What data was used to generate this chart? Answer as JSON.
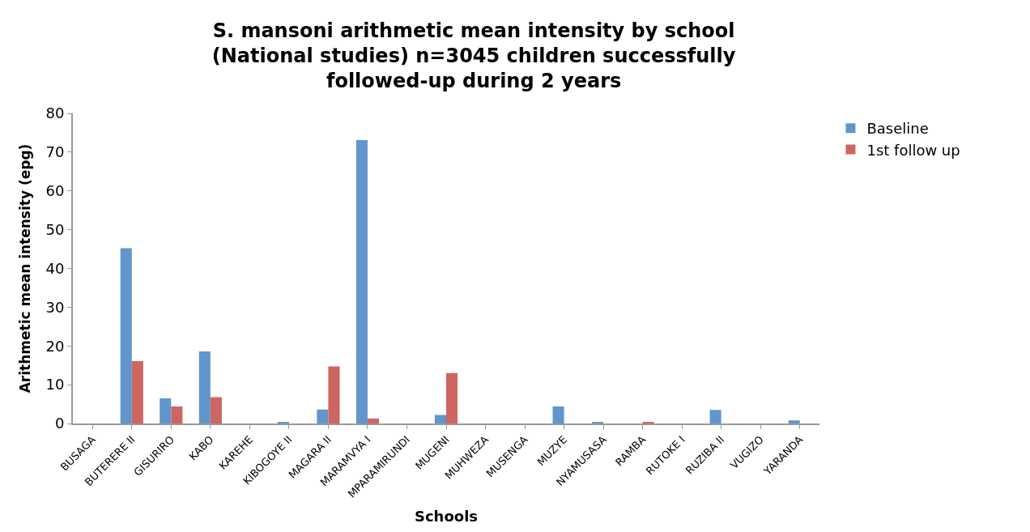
{
  "chart_data": {
    "type": "bar",
    "title": "S. mansoni arithmetic mean intensity by school (National studies) n=3045 children successfully followed-up during 2 years",
    "xlabel": "Schools",
    "ylabel": "Arithmetic mean intensity (epg)",
    "categories": [
      "BUSAGA",
      "BUTERERE II",
      "GISURIRO",
      "KABO",
      "KAREHE",
      "KIBOGOYE II",
      "MAGARA II",
      "MARAMVYA I",
      "MPARAMIRUNDI",
      "MUGENI",
      "MUHWEZA",
      "MUSENGA",
      "MUZYE",
      "NYAMUSASA",
      "RAMBA",
      "RUTOKE I",
      "RUZIBA II",
      "VUGIZO",
      "YARANDA"
    ],
    "series": [
      {
        "name": "Baseline",
        "color": "#6096cc",
        "values": [
          0,
          45.2,
          6.5,
          18.6,
          0,
          0.3,
          3.6,
          73.1,
          0,
          2.2,
          0,
          0,
          4.4,
          0.4,
          0,
          0,
          3.5,
          0,
          0.8
        ]
      },
      {
        "name": "1st follow up",
        "color": "#cd6661",
        "values": [
          0,
          16.1,
          4.4,
          6.8,
          0,
          0,
          14.7,
          1.3,
          0,
          13.0,
          0,
          0,
          0,
          0,
          0.3,
          0,
          0,
          0,
          0
        ]
      }
    ],
    "ylim": [
      0,
      80
    ],
    "yticks": [
      0,
      10,
      20,
      30,
      40,
      50,
      60,
      70,
      80
    ],
    "legend": "right"
  }
}
